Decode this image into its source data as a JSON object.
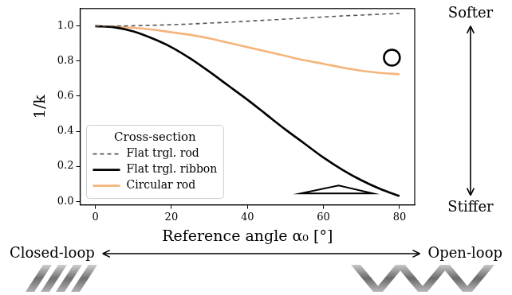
{
  "chart_data": {
    "type": "line",
    "x_label": "Reference angle α₀ [°]",
    "y_label": "1/k",
    "legend_title": "Cross-section",
    "legend": "lower left",
    "grid": false,
    "x": [
      0,
      5,
      10,
      15,
      20,
      25,
      30,
      35,
      40,
      45,
      50,
      55,
      60,
      65,
      70,
      75,
      80
    ],
    "series": [
      {
        "name": "Flat trgl. rod",
        "color": "#555555",
        "line_style": "dashed",
        "values": [
          1.0,
          1.0005,
          1.002,
          1.005,
          1.008,
          1.012,
          1.017,
          1.022,
          1.028,
          1.034,
          1.04,
          1.046,
          1.052,
          1.058,
          1.063,
          1.068,
          1.072
        ]
      },
      {
        "name": "Flat trgl. ribbon",
        "color": "#000000",
        "line_style": "solid",
        "values": [
          1.0,
          0.993,
          0.97,
          0.93,
          0.88,
          0.815,
          0.74,
          0.66,
          0.58,
          0.495,
          0.41,
          0.33,
          0.25,
          0.18,
          0.12,
          0.07,
          0.03
        ]
      },
      {
        "name": "Circular rod",
        "color": "#f5b47a",
        "line_style": "solid",
        "values": [
          1.0,
          0.998,
          0.99,
          0.98,
          0.965,
          0.95,
          0.93,
          0.905,
          0.88,
          0.855,
          0.83,
          0.805,
          0.785,
          0.763,
          0.745,
          0.733,
          0.725
        ]
      }
    ],
    "xlim": [
      -4,
      84
    ],
    "xticks": [
      0,
      20,
      40,
      60,
      80
    ],
    "ylim": [
      -0.02,
      1.1
    ],
    "yticks": [
      {
        "value": 0,
        "label": "0.0"
      },
      0.2,
      0.4,
      0.6,
      0.8,
      {
        "value": 1,
        "label": "1.0"
      }
    ],
    "annotations": [
      "Softer",
      "Stiffer",
      "Closed-loop",
      "Open-loop"
    ]
  }
}
